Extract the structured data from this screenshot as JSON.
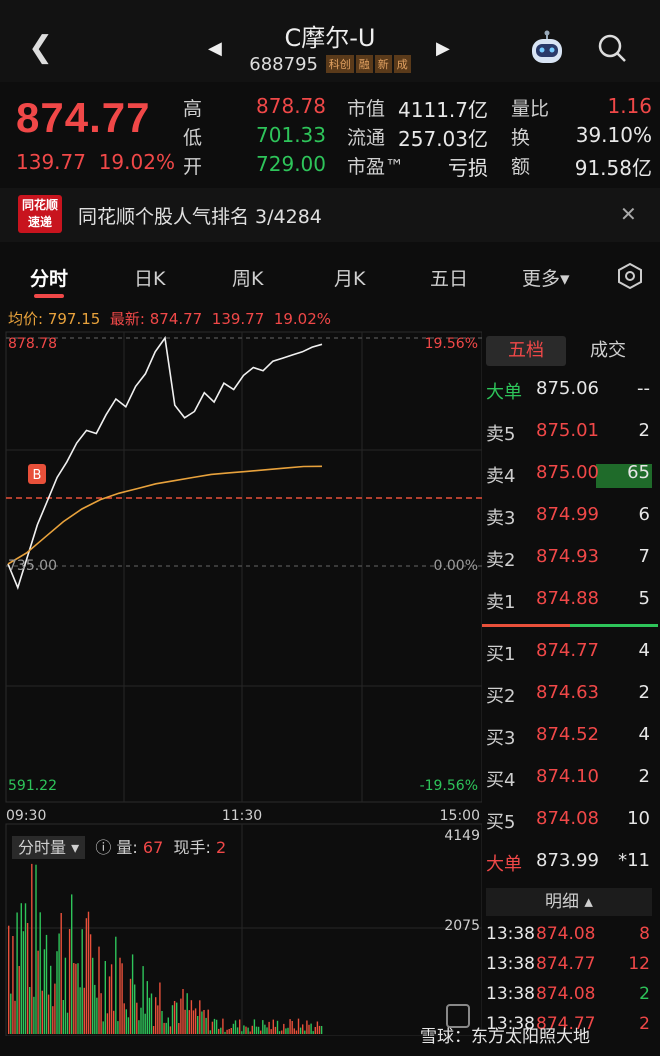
{
  "header": {
    "back_icon": "chevron-left-icon",
    "title": "C摩尔-U",
    "code": "688795",
    "badges": [
      "科创",
      "融",
      "新",
      "成"
    ],
    "prev_icon": "triangle-left-icon",
    "next_icon": "triangle-right-icon"
  },
  "quote": {
    "price": "874.77",
    "change": "139.77",
    "change_pct": "19.02%",
    "stats": {
      "high_label": "高",
      "high": "878.78",
      "low_label": "低",
      "low": "701.33",
      "open_label": "开",
      "open": "729.00",
      "mktcap_label": "市值",
      "mktcap": "4111.7亿",
      "float_label": "流通",
      "float": "257.03亿",
      "pe_label": "市盈™",
      "pe": "亏损",
      "vol_ratio_label": "量比",
      "vol_ratio": "1.16",
      "turnover_label": "换",
      "turnover": "39.10%",
      "amount_label": "额",
      "amount": "91.58亿"
    }
  },
  "banner": {
    "logo_top": "同花顺",
    "logo_bottom": "速递",
    "text": "同花顺个股人气排名 3/4284"
  },
  "tabs": {
    "items": [
      "分时",
      "日K",
      "周K",
      "月K",
      "五日",
      "更多▾"
    ],
    "active": "分时",
    "settings_icon": "hexagon-gear-icon"
  },
  "avg_row": {
    "avg_label": "均价:",
    "avg": "797.15",
    "latest_label": "最新:",
    "latest": "874.77",
    "change": "139.77",
    "change_pct": "19.02%"
  },
  "chart": {
    "y_top": "878.78",
    "y_mid": "735.00",
    "y_bottom": "591.22",
    "pct_top": "19.56%",
    "pct_mid": "0.00%",
    "pct_bottom": "-19.56%",
    "x_start": "09:30",
    "x_mid": "11:30",
    "x_end": "15:00",
    "buy_marker": "B"
  },
  "chart_data": {
    "type": "line",
    "series": [
      {
        "values": [
          735,
          720,
          740,
          760,
          775,
          790,
          800,
          812,
          820,
          818,
          830,
          840,
          835,
          848,
          856,
          870,
          878.78,
          836,
          828,
          832,
          844,
          838,
          850,
          846,
          855,
          860,
          858,
          864,
          866,
          868,
          870,
          873,
          874.77
        ]
      },
      {
        "values": [
          735,
          742,
          752,
          762,
          770,
          776,
          780,
          783,
          786,
          788,
          790,
          792,
          793,
          794,
          795,
          796,
          797,
          797.15
        ]
      }
    ],
    "ylim": [
      591.22,
      878.78
    ],
    "volume_max": "4149",
    "volume_mid": "2075"
  },
  "side": {
    "tab_active": "五档",
    "tab_other": "成交",
    "big_sell_label": "大单",
    "big_sell_price": "875.06",
    "big_sell_vol": "--",
    "asks": [
      {
        "label": "卖5",
        "price": "875.01",
        "vol": "2"
      },
      {
        "label": "卖4",
        "price": "875.00",
        "vol": "65"
      },
      {
        "label": "卖3",
        "price": "874.99",
        "vol": "6"
      },
      {
        "label": "卖2",
        "price": "874.93",
        "vol": "7"
      },
      {
        "label": "卖1",
        "price": "874.88",
        "vol": "5"
      }
    ],
    "bids": [
      {
        "label": "买1",
        "price": "874.77",
        "vol": "4"
      },
      {
        "label": "买2",
        "price": "874.63",
        "vol": "2"
      },
      {
        "label": "买3",
        "price": "874.52",
        "vol": "4"
      },
      {
        "label": "买4",
        "price": "874.10",
        "vol": "2"
      },
      {
        "label": "买5",
        "price": "874.08",
        "vol": "10"
      }
    ],
    "big_buy_label": "大单",
    "big_buy_price": "873.99",
    "big_buy_vol": "*11",
    "detail_label": "明细",
    "details": [
      {
        "time": "13:38",
        "price": "874.08",
        "vol": "8",
        "color": "red"
      },
      {
        "time": "13:38",
        "price": "874.77",
        "vol": "12",
        "color": "red"
      },
      {
        "time": "13:38",
        "price": "874.08",
        "vol": "2",
        "color": "green"
      },
      {
        "time": "13:38",
        "price": "874.77",
        "vol": "2",
        "color": "red"
      }
    ]
  },
  "volume": {
    "selector": "分时量",
    "help_icon": "question-circle-icon",
    "qty_label": "量:",
    "qty": "67",
    "now_label": "现手:",
    "now": "2"
  },
  "watermark": "雪球：东方太阳照大地"
}
